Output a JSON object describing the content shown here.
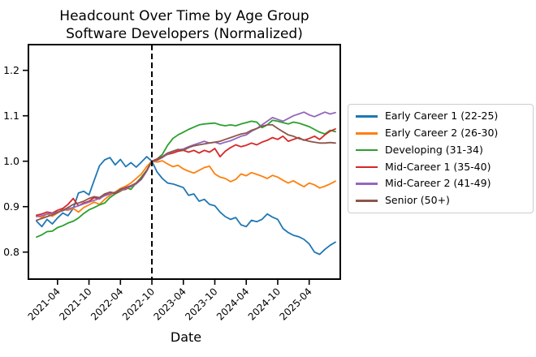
{
  "chart_data": {
    "type": "line",
    "title": "Headcount Over Time by Age Group",
    "subtitle": "Software Developers (Normalized)",
    "xlabel": "Date",
    "ylabel": "",
    "yticks": [
      0.8,
      0.9,
      1.0,
      1.1,
      1.2
    ],
    "ylim": [
      0.74,
      1.257
    ],
    "xtick_labels": [
      "2021-04",
      "2021-10",
      "2022-04",
      "2022-10",
      "2023-04",
      "2023-10",
      "2024-04",
      "2024-10",
      "2025-04"
    ],
    "grid": false,
    "legend_position": "right-outside",
    "vline": {
      "x": "2022-10",
      "style": "dashed",
      "color": "#000000"
    },
    "x": [
      "2020-12",
      "2021-01",
      "2021-02",
      "2021-03",
      "2021-04",
      "2021-05",
      "2021-06",
      "2021-07",
      "2021-08",
      "2021-09",
      "2021-10",
      "2021-11",
      "2021-12",
      "2022-01",
      "2022-02",
      "2022-03",
      "2022-04",
      "2022-05",
      "2022-06",
      "2022-07",
      "2022-08",
      "2022-09",
      "2022-10",
      "2022-11",
      "2022-12",
      "2023-01",
      "2023-02",
      "2023-03",
      "2023-04",
      "2023-05",
      "2023-06",
      "2023-07",
      "2023-08",
      "2023-09",
      "2023-10",
      "2023-11",
      "2023-12",
      "2024-01",
      "2024-02",
      "2024-03",
      "2024-04",
      "2024-05",
      "2024-06",
      "2024-07",
      "2024-08",
      "2024-09",
      "2024-10",
      "2024-11",
      "2024-12",
      "2025-01",
      "2025-02",
      "2025-03",
      "2025-04",
      "2025-05",
      "2025-06",
      "2025-07",
      "2025-08",
      "2025-09"
    ],
    "series": [
      {
        "name": "Early Career 1 (22-25)",
        "color": "#1f77b4",
        "values": [
          0.868,
          0.856,
          0.872,
          0.862,
          0.875,
          0.886,
          0.88,
          0.896,
          0.93,
          0.934,
          0.926,
          0.958,
          0.99,
          1.003,
          1.008,
          0.992,
          1.004,
          0.988,
          0.997,
          0.987,
          0.998,
          1.01,
          1.0,
          0.976,
          0.962,
          0.952,
          0.95,
          0.946,
          0.942,
          0.925,
          0.928,
          0.912,
          0.916,
          0.905,
          0.902,
          0.888,
          0.878,
          0.872,
          0.876,
          0.86,
          0.856,
          0.87,
          0.867,
          0.872,
          0.884,
          0.877,
          0.872,
          0.852,
          0.843,
          0.837,
          0.834,
          0.828,
          0.818,
          0.8,
          0.795,
          0.806,
          0.815,
          0.822
        ]
      },
      {
        "name": "Early Career 2 (26-30)",
        "color": "#ff7f0e",
        "values": [
          0.88,
          0.876,
          0.884,
          0.879,
          0.886,
          0.894,
          0.892,
          0.896,
          0.888,
          0.898,
          0.904,
          0.91,
          0.905,
          0.916,
          0.925,
          0.932,
          0.94,
          0.945,
          0.952,
          0.962,
          0.972,
          0.988,
          1.0,
          0.998,
          1.001,
          0.994,
          0.988,
          0.991,
          0.983,
          0.978,
          0.974,
          0.98,
          0.986,
          0.989,
          0.972,
          0.965,
          0.962,
          0.955,
          0.96,
          0.972,
          0.968,
          0.975,
          0.971,
          0.967,
          0.962,
          0.969,
          0.965,
          0.958,
          0.952,
          0.957,
          0.95,
          0.944,
          0.952,
          0.948,
          0.941,
          0.945,
          0.95,
          0.956
        ]
      },
      {
        "name": "Developing (31-34)",
        "color": "#2ca02c",
        "values": [
          0.833,
          0.838,
          0.845,
          0.846,
          0.854,
          0.858,
          0.864,
          0.868,
          0.875,
          0.885,
          0.893,
          0.898,
          0.904,
          0.908,
          0.92,
          0.928,
          0.934,
          0.942,
          0.938,
          0.952,
          0.965,
          0.98,
          1.0,
          1.005,
          1.015,
          1.035,
          1.05,
          1.058,
          1.064,
          1.07,
          1.075,
          1.08,
          1.082,
          1.083,
          1.084,
          1.08,
          1.078,
          1.08,
          1.078,
          1.082,
          1.085,
          1.088,
          1.086,
          1.074,
          1.08,
          1.09,
          1.088,
          1.085,
          1.082,
          1.086,
          1.084,
          1.08,
          1.076,
          1.07,
          1.064,
          1.06,
          1.068,
          1.065
        ]
      },
      {
        "name": "Mid-Career 1 (35-40)",
        "color": "#d62728",
        "values": [
          0.881,
          0.884,
          0.888,
          0.886,
          0.892,
          0.896,
          0.905,
          0.918,
          0.902,
          0.908,
          0.912,
          0.92,
          0.917,
          0.926,
          0.932,
          0.929,
          0.936,
          0.938,
          0.945,
          0.952,
          0.962,
          0.978,
          1.0,
          1.005,
          1.01,
          1.015,
          1.018,
          1.022,
          1.024,
          1.02,
          1.024,
          1.018,
          1.024,
          1.02,
          1.028,
          1.01,
          1.022,
          1.03,
          1.036,
          1.032,
          1.035,
          1.04,
          1.036,
          1.042,
          1.046,
          1.052,
          1.048,
          1.055,
          1.044,
          1.048,
          1.052,
          1.046,
          1.05,
          1.055,
          1.048,
          1.058,
          1.066,
          1.071
        ]
      },
      {
        "name": "Mid-Career 2 (41-49)",
        "color": "#9467bd",
        "values": [
          0.878,
          0.88,
          0.884,
          0.885,
          0.888,
          0.891,
          0.895,
          0.898,
          0.902,
          0.906,
          0.91,
          0.914,
          0.918,
          0.924,
          0.928,
          0.932,
          0.936,
          0.94,
          0.944,
          0.95,
          0.96,
          0.978,
          1.0,
          1.002,
          1.008,
          1.016,
          1.022,
          1.025,
          1.027,
          1.032,
          1.036,
          1.04,
          1.044,
          1.04,
          1.042,
          1.038,
          1.042,
          1.045,
          1.05,
          1.055,
          1.058,
          1.066,
          1.072,
          1.08,
          1.088,
          1.096,
          1.092,
          1.088,
          1.094,
          1.1,
          1.104,
          1.108,
          1.102,
          1.098,
          1.103,
          1.108,
          1.104,
          1.107
        ]
      },
      {
        "name": "Senior (50+)",
        "color": "#8c564b",
        "values": [
          0.87,
          0.874,
          0.878,
          0.882,
          0.887,
          0.892,
          0.898,
          0.905,
          0.908,
          0.912,
          0.918,
          0.922,
          0.92,
          0.928,
          0.932,
          0.93,
          0.938,
          0.942,
          0.946,
          0.952,
          0.962,
          0.98,
          1.0,
          1.003,
          1.01,
          1.018,
          1.022,
          1.026,
          1.024,
          1.03,
          1.034,
          1.036,
          1.038,
          1.04,
          1.042,
          1.044,
          1.048,
          1.052,
          1.056,
          1.06,
          1.062,
          1.068,
          1.072,
          1.077,
          1.08,
          1.08,
          1.072,
          1.065,
          1.058,
          1.055,
          1.05,
          1.047,
          1.044,
          1.042,
          1.04,
          1.04,
          1.041,
          1.04
        ]
      }
    ]
  },
  "colors": {
    "axes": "#000000",
    "legend_border": "#cccccc",
    "background": "#ffffff"
  }
}
